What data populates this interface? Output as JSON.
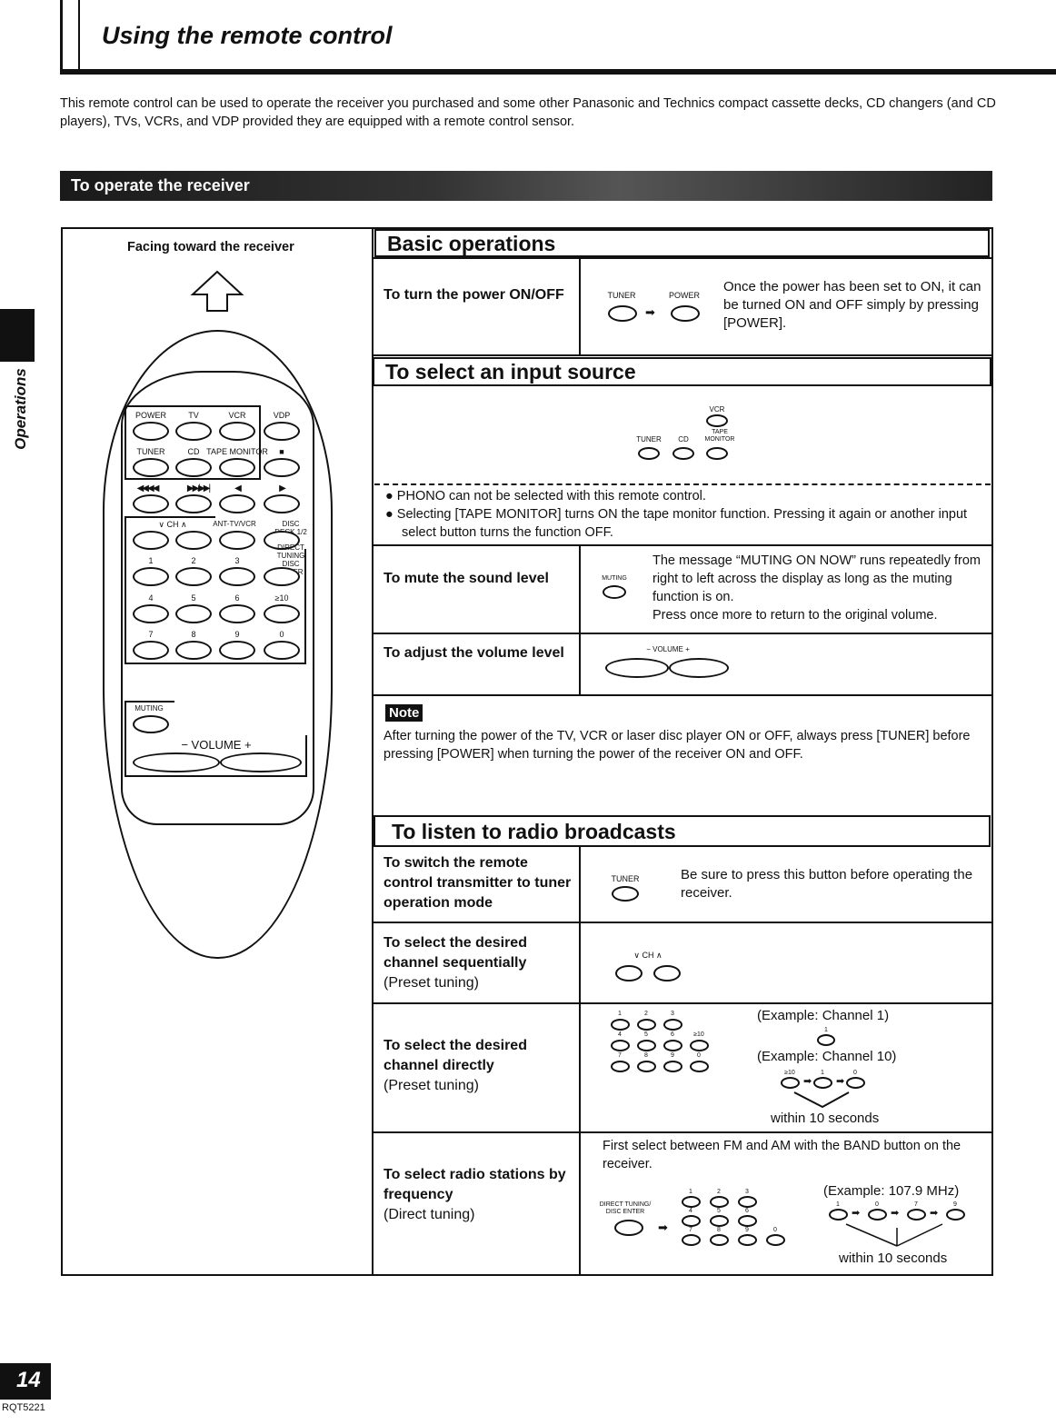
{
  "header": {
    "title": "Using the remote control"
  },
  "intro": "This remote control can be used to operate the receiver you purchased and some other Panasonic and Technics compact cassette decks, CD changers (and CD players), TVs, VCRs, and VDP provided they are equipped with a remote control sensor.",
  "section_banner": "To operate the receiver",
  "side_tab": "Operations",
  "page_number": "14",
  "doc_code": "RQT5221",
  "remote": {
    "facing": "Facing toward the receiver",
    "grid": [
      [
        "POWER",
        "TV",
        "VCR",
        "VDP"
      ],
      [
        "TUNER",
        "CD",
        "TAPE MONITOR",
        "■"
      ],
      [
        "◀◀◀◀",
        "▶▶/▶▶|",
        "◀",
        "▶"
      ],
      [
        "∨   CH   ∧",
        "",
        "ANT-TV/VCR",
        "DISC DECK 1/2"
      ],
      [
        "1",
        "2",
        "3",
        "DIRECT TUNING DISC ENTER"
      ],
      [
        "4",
        "5",
        "6",
        "≥10"
      ],
      [
        "7",
        "8",
        "9",
        "0"
      ]
    ],
    "muting": "MUTING",
    "volume": "−   VOLUME   +"
  },
  "basic": {
    "title": "Basic operations",
    "power": {
      "label": "To turn the power ON/OFF",
      "tuner": "TUNER",
      "power": "POWER",
      "text": "Once the power has been set to ON, it can be turned ON and OFF simply by pressing [POWER]."
    }
  },
  "input": {
    "title": "To select an input source",
    "vcr": "VCR",
    "tuner": "TUNER",
    "cd": "CD",
    "tape": "TAPE MONITOR",
    "notes": [
      "PHONO can not be selected with this remote control.",
      "Selecting [TAPE MONITOR] turns ON the tape monitor function. Pressing it again or another input select button turns the function OFF."
    ]
  },
  "mute": {
    "label": "To mute the sound level",
    "icon_label": "MUTING",
    "text": "The message “MUTING ON NOW” runs repeatedly from right to left across the display as long as the muting function is on.\nPress once more to return to the original volume."
  },
  "volume": {
    "label": "To adjust the volume level",
    "icon_label": "−   VOLUME   +"
  },
  "note": {
    "badge": "Note",
    "text": "After turning the power of the TV, VCR or laser disc player ON or OFF, always press [TUNER] before pressing [POWER] when turning the power of the receiver ON and OFF."
  },
  "radio": {
    "title": "To listen to radio broadcasts",
    "switch": {
      "label": "To switch the remote control transmitter to tuner operation mode",
      "icon_label": "TUNER",
      "text": "Be sure to press this button before operating the receiver."
    },
    "sequential": {
      "label": "To select the desired channel sequentially",
      "sub": "(Preset tuning)",
      "icon_label": "∨  CH  ∧"
    },
    "direct": {
      "label": "To select the desired channel directly",
      "sub": "(Preset tuning)",
      "ex1": "(Example: Channel 1)",
      "ex2": "(Example: Channel 10)",
      "within": "within 10 seconds",
      "keys": [
        "1",
        "2",
        "3",
        "",
        "4",
        "5",
        "6",
        "≥10",
        "7",
        "8",
        "9",
        "0"
      ],
      "seq": [
        "≥10",
        "1",
        "0"
      ]
    },
    "frequency": {
      "label": "To select radio stations by frequency",
      "sub": "(Direct tuning)",
      "text": "First select between FM and AM with the BAND button on the receiver.",
      "icon_label": "DIRECT TUNING/ DISC ENTER",
      "example": "(Example: 107.9 MHz)",
      "within": "within 10 seconds",
      "seq": [
        "1",
        "0",
        "7",
        "9"
      ]
    }
  }
}
